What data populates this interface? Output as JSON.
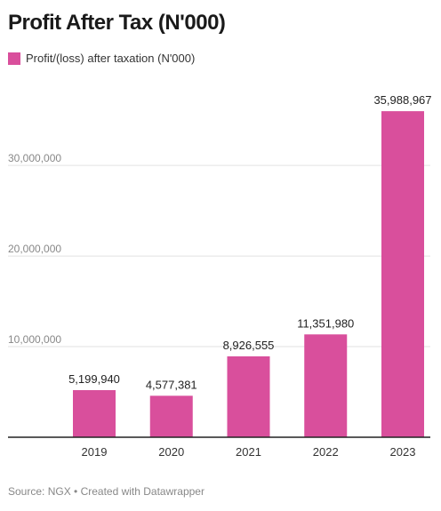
{
  "title": "Profit After Tax (N'000)",
  "source": "Source: NGX • Created with Datawrapper",
  "colors": {
    "bar": "#d94f9c",
    "grid": "#e2e2e2",
    "axis": "#222222",
    "tick_text": "#888888",
    "label_text": "#222222"
  },
  "chart_data": {
    "type": "bar",
    "title": "Profit After Tax (N'000)",
    "legend": {
      "placement": "top-left",
      "entries": [
        "Profit/(loss) after taxation (N'000)"
      ]
    },
    "categories": [
      "2019",
      "2020",
      "2021",
      "2022",
      "2023"
    ],
    "series": [
      {
        "name": "Profit/(loss) after taxation (N'000)",
        "values": [
          5199940,
          4577381,
          8926555,
          11351980,
          35988967
        ]
      }
    ],
    "value_labels": [
      "5,199,940",
      "4,577,381",
      "8,926,555",
      "11,351,980",
      "35,988,967"
    ],
    "y_ticks": [
      10000000,
      20000000,
      30000000
    ],
    "y_tick_labels": [
      "10,000,000",
      "20,000,000",
      "30,000,000"
    ],
    "ylim": [
      0,
      36000000
    ],
    "grid": true,
    "xlabel": "",
    "ylabel": ""
  }
}
